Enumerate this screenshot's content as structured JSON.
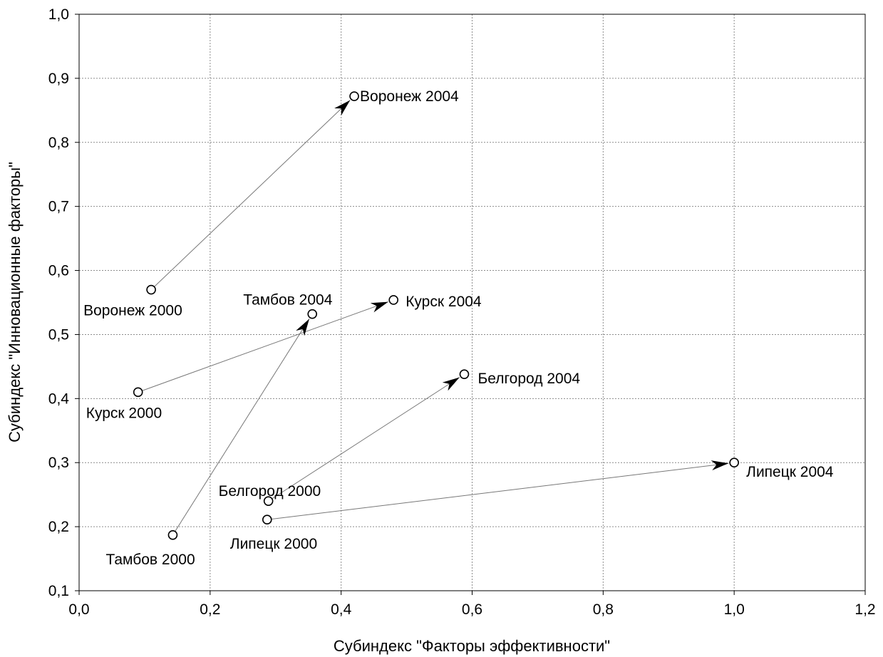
{
  "chart_data": {
    "type": "scatter",
    "xlabel": "Субиндекс \"Факторы эффективности\"",
    "ylabel": "Субиндекс \"Инновационные факторы\"",
    "xlim": [
      0.0,
      1.2
    ],
    "ylim": [
      0.1,
      1.0
    ],
    "x_ticks": [
      "0,0",
      "0,2",
      "0,4",
      "0,6",
      "0,8",
      "1,0",
      "1,2"
    ],
    "y_ticks": [
      "0,1",
      "0,2",
      "0,3",
      "0,4",
      "0,5",
      "0,6",
      "0,7",
      "0,8",
      "0,9",
      "1,0"
    ],
    "grid": true,
    "points": [
      {
        "label": "Воронеж 2000",
        "x": 0.11,
        "y": 0.57
      },
      {
        "label": "Воронеж 2004",
        "x": 0.42,
        "y": 0.872
      },
      {
        "label": "Курск 2000",
        "x": 0.09,
        "y": 0.41
      },
      {
        "label": "Курск 2004",
        "x": 0.48,
        "y": 0.554
      },
      {
        "label": "Тамбов 2000",
        "x": 0.143,
        "y": 0.187
      },
      {
        "label": "Тамбов 2004",
        "x": 0.356,
        "y": 0.532
      },
      {
        "label": "Белгород 2000",
        "x": 0.289,
        "y": 0.24
      },
      {
        "label": "Белгород 2004",
        "x": 0.588,
        "y": 0.438
      },
      {
        "label": "Липецк 2000",
        "x": 0.287,
        "y": 0.211
      },
      {
        "label": "Липецк 2004",
        "x": 1.0,
        "y": 0.3
      }
    ],
    "arrows": [
      {
        "from": "Воронеж 2000",
        "to": "Воронеж 2004"
      },
      {
        "from": "Курск 2000",
        "to": "Курск 2004"
      },
      {
        "from": "Тамбов 2000",
        "to": "Тамбов 2004"
      },
      {
        "from": "Белгород 2000",
        "to": "Белгород 2004"
      },
      {
        "from": "Липецк 2000",
        "to": "Липецк 2004"
      }
    ]
  }
}
